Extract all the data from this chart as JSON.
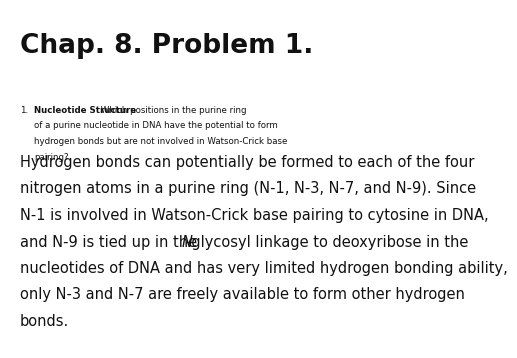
{
  "title": "Chap. 8. Problem 1.",
  "q_num": "1.",
  "q_bold": "Nucleotide Structure",
  "q_rest_line1": " Which positions in the purine ring",
  "q_rest_line2": "of a purine nucleotide in DNA have the potential to form",
  "q_rest_line3": "hydrogen bonds but are not involved in Watson-Crick base",
  "q_rest_line4": "pairing?",
  "ans_lines": [
    "Hydrogen bonds can potentially be formed to each of the four",
    "nitrogen atoms in a purine ring (N-1, N-3, N-7, and N-9). Since",
    "N-1 is involved in Watson-Crick base pairing to cytosine in DNA,",
    "and N-9 is tied up in the N-glycosyl linkage to deoxyribose in the",
    "nucleotides of DNA and has very limited hydrogen bonding ability,",
    "only N-3 and N-7 are freely available to form other hydrogen",
    "bonds."
  ],
  "italic_line_index": 3,
  "italic_prefix": "and N-9 is tied up in the ",
  "italic_char": "N",
  "italic_suffix": "-glycosyl linkage to deoxyribose in the",
  "background_color": "#ffffff",
  "text_color": "#111111",
  "title_fontsize": 19,
  "q_fontsize": 6.2,
  "ans_fontsize": 10.5
}
